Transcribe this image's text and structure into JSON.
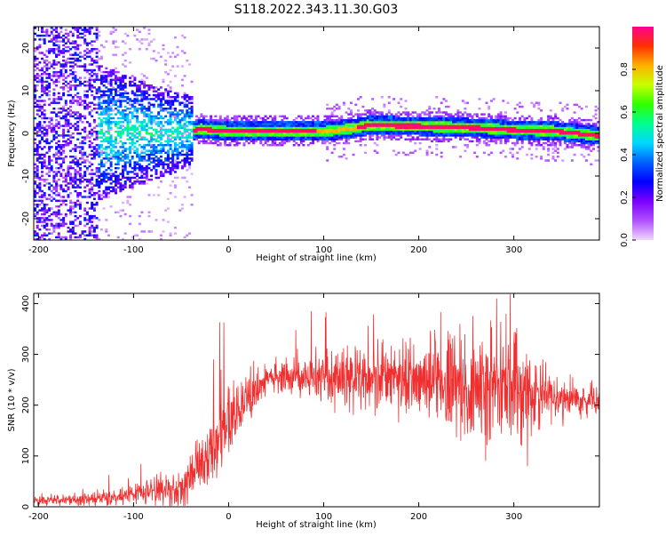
{
  "title": "S118.2022.343.11.30.G03",
  "colors": {
    "colormap": [
      "#f0d8ff",
      "#b050ff",
      "#7a00ff",
      "#0000ff",
      "#0060ff",
      "#00d8ff",
      "#00ff90",
      "#30ff00",
      "#c8ff00",
      "#ffb000",
      "#ff3000",
      "#ff0090"
    ],
    "snr_line": "#f03030",
    "axis": "#000000",
    "background": "#ffffff"
  },
  "chart_data": [
    {
      "type": "heatmap",
      "xlabel": "Height of straight line (km)",
      "ylabel": "Frequency (Hz)",
      "xlim": [
        -205,
        390
      ],
      "ylim": [
        -25,
        25
      ],
      "xticks": [
        -200,
        -100,
        0,
        100,
        200,
        300
      ],
      "yticks": [
        -20,
        -10,
        0,
        10,
        20
      ],
      "colorbar": {
        "label": "Normalized spectral amplitude",
        "range": [
          0.0,
          1.0
        ],
        "ticks": [
          "0.0",
          "0.2",
          "0.4",
          "0.6",
          "0.8"
        ],
        "tick_values": [
          0.0,
          0.2,
          0.4,
          0.6,
          0.8
        ]
      },
      "ridge": {
        "x": [
          -60,
          -40,
          -30,
          0,
          100,
          130,
          145,
          200,
          240,
          260,
          300,
          340,
          390
        ],
        "freq": [
          0,
          0.5,
          0.8,
          0.3,
          0.3,
          1,
          1.7,
          1.5,
          1.2,
          1.1,
          0.6,
          0.4,
          -0.8
        ]
      }
    },
    {
      "type": "line",
      "xlabel": "Height of straight line (km)",
      "ylabel": "SNR (10 * v/v)",
      "xlim": [
        -205,
        390
      ],
      "ylim": [
        0,
        420
      ],
      "xticks": [
        -200,
        -100,
        0,
        100,
        200,
        300
      ],
      "yticks": [
        0,
        100,
        200,
        300,
        400
      ],
      "trend": {
        "x": [
          -205,
          -120,
          -80,
          -60,
          -40,
          -20,
          0,
          20,
          40,
          100,
          200,
          250,
          300,
          340,
          390
        ],
        "y": [
          12,
          18,
          30,
          30,
          55,
          110,
          160,
          215,
          255,
          255,
          250,
          240,
          220,
          215,
          210
        ]
      },
      "spread": {
        "x": [
          -205,
          -100,
          -40,
          0,
          40,
          100,
          200,
          240,
          300,
          340,
          390
        ],
        "y": [
          8,
          15,
          40,
          60,
          25,
          45,
          60,
          90,
          100,
          35,
          25
        ]
      },
      "peak_values": [
        418,
        410,
        385,
        290,
        270
      ]
    }
  ]
}
